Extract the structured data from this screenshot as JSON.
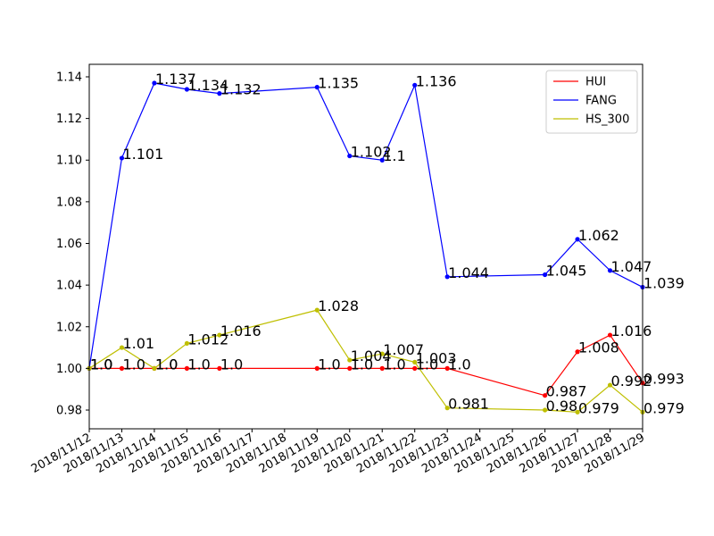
{
  "chart_data": {
    "type": "line",
    "x": [
      "2018/11/12",
      "2018/11/13",
      "2018/11/14",
      "2018/11/15",
      "2018/11/16",
      "2018/11/19",
      "2018/11/20",
      "2018/11/21",
      "2018/11/22",
      "2018/11/23",
      "2018/11/26",
      "2018/11/27",
      "2018/11/28",
      "2018/11/29"
    ],
    "x_ticks": [
      "2018/11/12",
      "2018/11/13",
      "2018/11/14",
      "2018/11/15",
      "2018/11/16",
      "2018/11/17",
      "2018/11/18",
      "2018/11/19",
      "2018/11/20",
      "2018/11/21",
      "2018/11/22",
      "2018/11/23",
      "2018/11/24",
      "2018/11/25",
      "2018/11/26",
      "2018/11/27",
      "2018/11/28",
      "2018/11/29"
    ],
    "xlim": [
      "2018/11/12",
      "2018/11/29"
    ],
    "ylim": [
      0.971,
      1.146
    ],
    "y_ticks": [
      "0.98",
      "1.00",
      "1.02",
      "1.04",
      "1.06",
      "1.08",
      "1.10",
      "1.12",
      "1.14"
    ],
    "grid": false,
    "legend_position": "top-right",
    "series": [
      {
        "name": "HUI",
        "color": "#ff0000",
        "values": [
          1.0,
          1.0,
          1.0,
          1.0,
          1.0,
          1.0,
          1.0,
          1.0,
          1.0,
          1.0,
          0.987,
          1.008,
          1.016,
          0.993
        ],
        "labels": [
          "1.0",
          "1.0",
          "1.0",
          "1.0",
          "1.0",
          "1.0",
          "1.0",
          "1.0",
          "1.0",
          "1.0",
          "0.987",
          "1.008",
          "1.016",
          "0.993"
        ]
      },
      {
        "name": "FANG",
        "color": "#0000ff",
        "values": [
          1.0,
          1.101,
          1.137,
          1.134,
          1.132,
          1.135,
          1.102,
          1.1,
          1.136,
          1.044,
          1.045,
          1.062,
          1.047,
          1.039
        ],
        "labels": [
          "1.0",
          "1.101",
          "1.137",
          "1.134",
          "1.132",
          "1.135",
          "1.102",
          "1.1",
          "1.136",
          "1.044",
          "1.045",
          "1.062",
          "1.047",
          "1.039"
        ]
      },
      {
        "name": "HS_300",
        "color": "#bfbf00",
        "values": [
          1.0,
          1.01,
          1.0,
          1.012,
          1.016,
          1.028,
          1.004,
          1.007,
          1.003,
          0.981,
          0.98,
          0.979,
          0.992,
          0.979
        ],
        "labels": [
          "1.0",
          "1.01",
          "1.0",
          "1.012",
          "1.016",
          "1.028",
          "1.004",
          "1.007",
          "1.003",
          "0.981",
          "0.98",
          "0.979",
          "0.992",
          "0.979"
        ]
      }
    ]
  }
}
